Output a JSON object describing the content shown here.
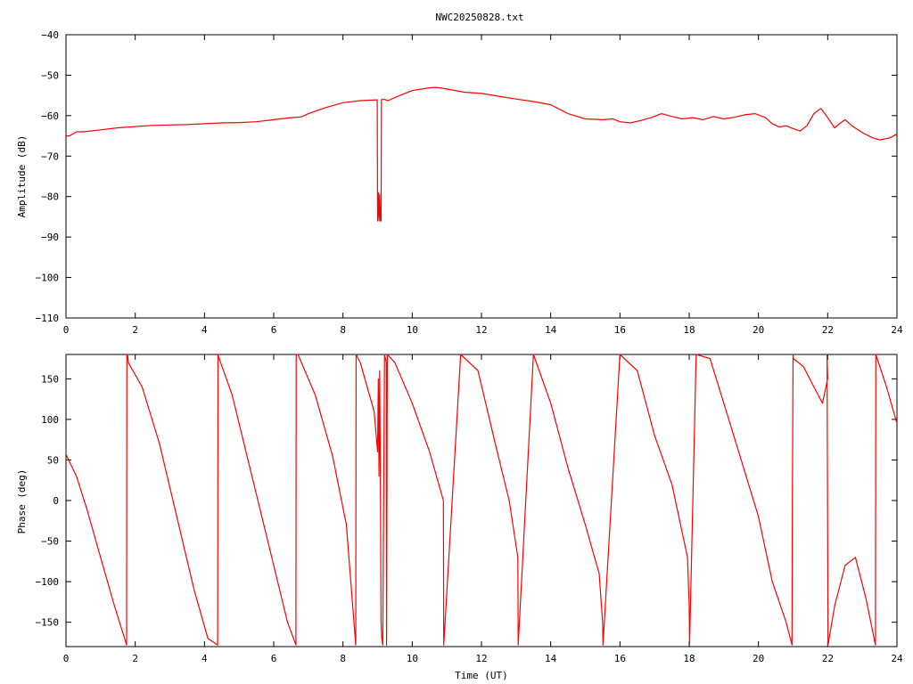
{
  "chart_data": [
    {
      "type": "line",
      "title": "NWC20250828.txt",
      "xlabel": "",
      "ylabel": "Amplitude (dB)",
      "xlim": [
        0,
        24
      ],
      "ylim": [
        -110,
        -40
      ],
      "xticks": [
        "0",
        "2",
        "4",
        "6",
        "8",
        "10",
        "12",
        "14",
        "16",
        "18",
        "20",
        "22",
        "24"
      ],
      "yticks": [
        "-40",
        "-50",
        "-60",
        "-70",
        "-80",
        "-90",
        "-100",
        "-110"
      ],
      "grid": false,
      "color": "#ff0000",
      "series": [
        {
          "x": [
            0,
            0.1,
            0.3,
            0.5,
            1,
            1.5,
            2,
            2.5,
            3,
            3.5,
            4,
            4.5,
            5,
            5.5,
            6,
            6.5,
            6.8,
            7,
            7.5,
            8,
            8.5,
            8.99,
            9.0,
            9.02,
            9.04,
            9.06,
            9.08,
            9.1,
            9.11,
            9.12,
            9.2,
            9.3,
            9.5,
            10,
            10.5,
            10.7,
            11,
            11.5,
            12,
            12.5,
            13,
            13.5,
            14,
            14.5,
            15,
            15.5,
            15.8,
            16,
            16.3,
            16.6,
            16.9,
            17.2,
            17.5,
            17.8,
            18.1,
            18.4,
            18.7,
            19,
            19.3,
            19.6,
            19.9,
            20.2,
            20.4,
            20.6,
            20.8,
            21.0,
            21.2,
            21.4,
            21.6,
            21.8,
            22.0,
            22.2,
            22.4,
            22.5,
            22.7,
            23.0,
            23.3,
            23.5,
            23.8,
            24
          ],
          "y": [
            -65,
            -65,
            -64,
            -64,
            -63.5,
            -63,
            -62.7,
            -62.4,
            -62.3,
            -62.2,
            -62,
            -61.8,
            -61.7,
            -61.5,
            -61,
            -60.5,
            -60.3,
            -59.5,
            -58,
            -56.8,
            -56.3,
            -56.1,
            -86,
            -79,
            -86,
            -79.5,
            -86,
            -86,
            -56,
            -56,
            -56,
            -56.3,
            -55.5,
            -53.8,
            -53.1,
            -53,
            -53.4,
            -54.2,
            -54.5,
            -55.2,
            -55.9,
            -56.5,
            -57.3,
            -59.5,
            -60.8,
            -61,
            -60.8,
            -61.5,
            -61.8,
            -61.2,
            -60.5,
            -59.5,
            -60.2,
            -60.8,
            -60.5,
            -61,
            -60.2,
            -60.8,
            -60.4,
            -59.8,
            -59.5,
            -60.5,
            -62,
            -62.8,
            -62.5,
            -63.2,
            -63.8,
            -62.5,
            -59.5,
            -58.2,
            -60.5,
            -63,
            -61.6,
            -61,
            -62.5,
            -64.2,
            -65.5,
            -66,
            -65.5,
            -64.5
          ]
        }
      ]
    },
    {
      "type": "line",
      "title": "",
      "xlabel": "Time (UT)",
      "ylabel": "Phase (deg)",
      "xlim": [
        0,
        24
      ],
      "ylim": [
        -180,
        180
      ],
      "xticks": [
        "0",
        "2",
        "4",
        "6",
        "8",
        "10",
        "12",
        "14",
        "16",
        "18",
        "20",
        "22",
        "24"
      ],
      "yticks": [
        "150",
        "100",
        "50",
        "0",
        "-50",
        "-100",
        "-150"
      ],
      "grid": false,
      "color": "#ff0000",
      "series": [
        {
          "x": [
            0,
            0.3,
            0.6,
            1.0,
            1.4,
            1.75,
            1.76,
            1.78,
            1.8,
            2.2,
            2.7,
            3.2,
            3.7,
            4.1,
            4.38,
            4.39,
            4.4,
            4.8,
            5.2,
            5.6,
            6.0,
            6.4,
            6.64,
            6.65,
            6.7,
            7.2,
            7.7,
            8.1,
            8.37,
            8.38,
            8.5,
            8.7,
            8.9,
            9.0,
            9.02,
            9.04,
            9.06,
            9.08,
            9.1,
            9.12,
            9.15,
            9.2,
            9.25,
            9.26,
            9.28,
            9.5,
            10,
            10.5,
            10.9,
            10.91,
            11.4,
            11.9,
            12.4,
            12.8,
            13.05,
            13.06,
            13.5,
            14,
            14.5,
            15,
            15.4,
            15.5,
            15.51,
            16,
            16.5,
            17,
            17.5,
            17.95,
            18.0,
            18.01,
            18.2,
            18.6,
            19,
            19.5,
            20,
            20.4,
            20.8,
            20.97,
            20.98,
            21.0,
            21.01,
            21.3,
            21.6,
            21.85,
            22.0,
            21.98,
            22.01,
            22.2,
            22.5,
            22.8,
            23.1,
            23.38,
            23.39,
            23.7,
            24
          ],
          "y": [
            57,
            30,
            -10,
            -70,
            -130,
            -178,
            180,
            180,
            170,
            140,
            70,
            -20,
            -110,
            -170,
            -178,
            180,
            178,
            130,
            60,
            -10,
            -80,
            -150,
            -178,
            180,
            180,
            130,
            55,
            -30,
            -178,
            180,
            170,
            140,
            110,
            60,
            150,
            30,
            160,
            40,
            -150,
            -170,
            -178,
            180,
            170,
            -178,
            180,
            170,
            120,
            60,
            0,
            -178,
            180,
            160,
            70,
            0,
            -70,
            -178,
            180,
            120,
            40,
            -30,
            -90,
            -150,
            -178,
            180,
            160,
            80,
            20,
            -70,
            -130,
            -178,
            180,
            175,
            120,
            50,
            -20,
            -100,
            -150,
            -178,
            0,
            180,
            175,
            165,
            140,
            120,
            150,
            180,
            -178,
            -130,
            -80,
            -70,
            -120,
            -178,
            180,
            140,
            95
          ]
        }
      ]
    }
  ]
}
